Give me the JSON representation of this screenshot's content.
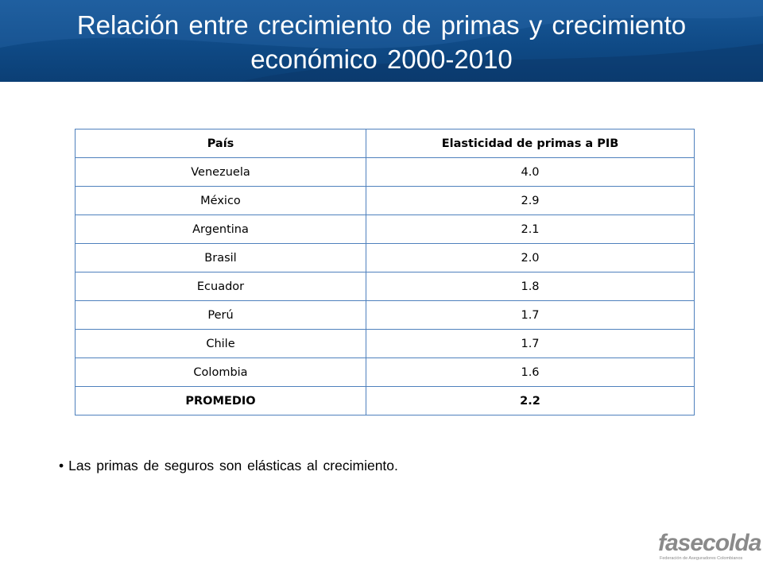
{
  "slide": {
    "title_line1": "Relación entre  crecimiento de primas y crecimiento",
    "title_line2": "económico 2000-2010"
  },
  "table": {
    "headers": [
      "País",
      "Elasticidad de primas a PIB"
    ],
    "rows": [
      {
        "country": "Venezuela",
        "value": "4.0"
      },
      {
        "country": "México",
        "value": "2.9"
      },
      {
        "country": "Argentina",
        "value": "2.1"
      },
      {
        "country": "Brasil",
        "value": "2.0"
      },
      {
        "country": "Ecuador",
        "value": "1.8"
      },
      {
        "country": "Perú",
        "value": "1.7"
      },
      {
        "country": "Chile",
        "value": "1.7"
      },
      {
        "country": "Colombia",
        "value": "1.6"
      }
    ],
    "total": {
      "country": "PROMEDIO",
      "value": "2.2"
    }
  },
  "bullet": {
    "symbol": "•",
    "text": "Las primas de seguros son elásticas al crecimiento."
  },
  "logo": {
    "name": "fasecolda",
    "subtitle": "Federación de Aseguradores Colombianos"
  },
  "colors": {
    "header_bg": "#0f4a86",
    "table_border": "#4f81bd",
    "logo": "#8a8a8a"
  }
}
